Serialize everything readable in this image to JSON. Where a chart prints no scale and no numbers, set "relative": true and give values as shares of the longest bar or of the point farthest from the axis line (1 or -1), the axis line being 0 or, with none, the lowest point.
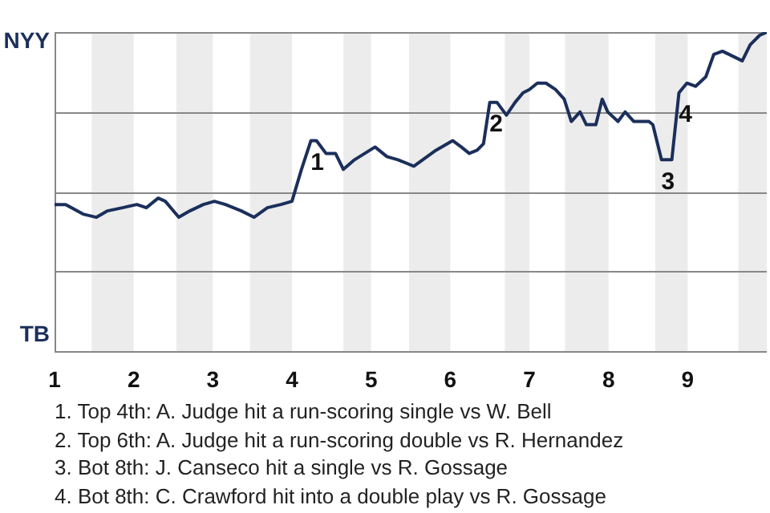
{
  "chart_data": {
    "type": "line",
    "relative": true,
    "x": [
      1,
      1.14,
      1.36,
      1.53,
      1.67,
      1.86,
      2.04,
      2.16,
      2.31,
      2.4,
      2.57,
      2.71,
      2.88,
      3.02,
      3.16,
      3.36,
      3.52,
      3.69,
      3.86,
      4,
      4.12,
      4.24,
      4.31,
      4.43,
      4.55,
      4.65,
      4.79,
      4.92,
      5.05,
      5.2,
      5.34,
      5.54,
      5.82,
      6.03,
      6.14,
      6.24,
      6.34,
      6.42,
      6.5,
      6.59,
      6.71,
      6.82,
      6.92,
      7,
      7.1,
      7.21,
      7.33,
      7.44,
      7.53,
      7.64,
      7.72,
      7.84,
      7.92,
      7.99,
      8.12,
      8.21,
      8.32,
      8.51,
      8.56,
      8.67,
      8.8,
      8.89,
      8.99,
      9.1,
      9.23,
      9.33,
      9.44,
      9.69,
      9.79,
      9.91,
      10
    ],
    "series": [
      {
        "color": "#1b2f5b",
        "values": [
          0.46,
          0.46,
          0.43,
          0.42,
          0.44,
          0.45,
          0.46,
          0.45,
          0.48,
          0.47,
          0.42,
          0.44,
          0.46,
          0.47,
          0.46,
          0.44,
          0.42,
          0.45,
          0.46,
          0.47,
          0.57,
          0.66,
          0.66,
          0.62,
          0.62,
          0.57,
          0.6,
          0.62,
          0.64,
          0.61,
          0.6,
          0.58,
          0.63,
          0.66,
          0.64,
          0.62,
          0.63,
          0.65,
          0.78,
          0.78,
          0.74,
          0.78,
          0.81,
          0.82,
          0.84,
          0.84,
          0.82,
          0.79,
          0.72,
          0.75,
          0.71,
          0.71,
          0.79,
          0.75,
          0.72,
          0.75,
          0.72,
          0.72,
          0.71,
          0.6,
          0.6,
          0.81,
          0.84,
          0.83,
          0.86,
          0.93,
          0.94,
          0.91,
          0.96,
          0.99,
          1
        ]
      }
    ],
    "xlim": [
      1,
      10
    ],
    "xticks": [
      1,
      2,
      3,
      4,
      5,
      6,
      7,
      8,
      9
    ],
    "marker": "none",
    "line_style": "solid",
    "legend": false,
    "ref_lines": [
      {
        "axis": "y",
        "value": 0,
        "color": "#888888",
        "label": "TB"
      },
      {
        "axis": "y",
        "value": 0.25,
        "color": "#888888"
      },
      {
        "axis": "y",
        "value": 0.5,
        "color": "#888888"
      },
      {
        "axis": "y",
        "value": 0.75,
        "color": "#888888"
      },
      {
        "axis": "y",
        "value": 1,
        "color": "#888888",
        "label": "NYY"
      }
    ],
    "bands": [
      {
        "axis": "x",
        "from": 1.47,
        "to": 2,
        "color": "#ececec"
      },
      {
        "axis": "x",
        "from": 2.54,
        "to": 3,
        "color": "#ececec"
      },
      {
        "axis": "x",
        "from": 3.47,
        "to": 4,
        "color": "#ececec"
      },
      {
        "axis": "x",
        "from": 4.65,
        "to": 5,
        "color": "#ececec"
      },
      {
        "axis": "x",
        "from": 5.48,
        "to": 6,
        "color": "#ececec"
      },
      {
        "axis": "x",
        "from": 6.69,
        "to": 7,
        "color": "#ececec"
      },
      {
        "axis": "x",
        "from": 7.45,
        "to": 8,
        "color": "#ececec"
      },
      {
        "axis": "x",
        "from": 8.59,
        "to": 9,
        "color": "#ececec"
      },
      {
        "axis": "x",
        "from": 9.64,
        "to": 10,
        "color": "#ececec"
      }
    ],
    "annotations": [
      {
        "text": "1",
        "x": 4.24,
        "y": 0.66
      },
      {
        "text": "2",
        "x": 6.5,
        "y": 0.78
      },
      {
        "text": "3",
        "x": 8.67,
        "y": 0.6
      },
      {
        "text": "4",
        "x": 8.89,
        "y": 0.81
      },
      "1. Top 4th: A. Judge hit a run-scoring single vs W. Bell",
      "2. Top 6th: A. Judge hit a run-scoring double vs R. Hernandez",
      "3. Bot 8th: J. Canseco hit a single vs R. Gossage",
      "4. Bot 8th: C. Crawford hit into a double play vs R. Gossage"
    ]
  }
}
